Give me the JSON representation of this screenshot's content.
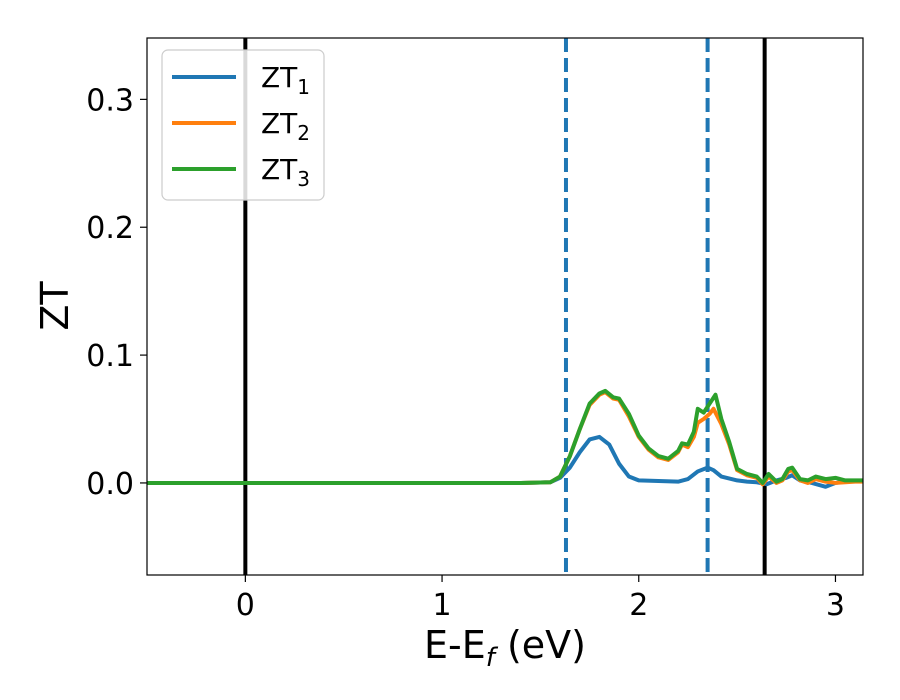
{
  "chart_data": {
    "type": "line",
    "xlabel_main": "E-E",
    "xlabel_sub": "f",
    "xlabel_unit": " (eV)",
    "ylabel": "ZT",
    "xlim": [
      -0.5,
      3.14
    ],
    "ylim": [
      -0.072,
      0.348
    ],
    "x_ticks": [
      0,
      1,
      2,
      3
    ],
    "x_tick_labels": [
      "0",
      "1",
      "2",
      "3"
    ],
    "y_ticks": [
      0.0,
      0.1,
      0.2,
      0.3
    ],
    "y_tick_labels": [
      "0.0",
      "0.1",
      "0.2",
      "0.3"
    ],
    "grid": false,
    "legend_position": "top-left",
    "vertical_lines": [
      {
        "x": 0.0,
        "style": "solid",
        "color": "#000000"
      },
      {
        "x": 2.64,
        "style": "solid",
        "color": "#000000"
      },
      {
        "x": 1.63,
        "style": "dashed",
        "color": "#1f77b4"
      },
      {
        "x": 2.35,
        "style": "dashed",
        "color": "#1f77b4"
      }
    ],
    "series": [
      {
        "name": "ZT",
        "name_sub": "1",
        "color": "#1f77b4",
        "x": [
          -0.5,
          1.4,
          1.55,
          1.6,
          1.65,
          1.7,
          1.75,
          1.8,
          1.85,
          1.9,
          1.95,
          2.0,
          2.1,
          2.2,
          2.25,
          2.3,
          2.35,
          2.38,
          2.42,
          2.5,
          2.55,
          2.6,
          2.65,
          2.7,
          2.75,
          2.78,
          2.82,
          2.88,
          2.95,
          3.0,
          3.05,
          3.1,
          3.14
        ],
        "y": [
          0.0,
          0.0,
          0.0005,
          0.004,
          0.012,
          0.024,
          0.034,
          0.036,
          0.03,
          0.015,
          0.005,
          0.002,
          0.0015,
          0.001,
          0.003,
          0.009,
          0.012,
          0.01,
          0.005,
          0.002,
          0.001,
          0.0005,
          -0.001,
          0.002,
          0.004,
          0.006,
          0.002,
          0.0,
          -0.003,
          0.0,
          0.001,
          0.0015,
          0.0015
        ]
      },
      {
        "name": "ZT",
        "name_sub": "2",
        "color": "#ff7f0e",
        "x": [
          -0.5,
          1.4,
          1.55,
          1.6,
          1.65,
          1.7,
          1.75,
          1.8,
          1.83,
          1.87,
          1.9,
          1.95,
          2.0,
          2.05,
          2.1,
          2.15,
          2.2,
          2.22,
          2.25,
          2.28,
          2.3,
          2.33,
          2.36,
          2.38,
          2.42,
          2.46,
          2.5,
          2.55,
          2.6,
          2.63,
          2.66,
          2.7,
          2.73,
          2.76,
          2.78,
          2.82,
          2.86,
          2.9,
          2.95,
          3.0,
          3.05,
          3.1,
          3.14
        ],
        "y": [
          0.0,
          0.0,
          0.0005,
          0.005,
          0.021,
          0.042,
          0.061,
          0.069,
          0.071,
          0.066,
          0.065,
          0.052,
          0.036,
          0.026,
          0.02,
          0.018,
          0.024,
          0.03,
          0.028,
          0.036,
          0.047,
          0.05,
          0.054,
          0.058,
          0.046,
          0.03,
          0.01,
          0.006,
          0.004,
          -0.001,
          0.005,
          0.0,
          0.002,
          0.009,
          0.01,
          0.002,
          0.0,
          0.003,
          0.001,
          0.0,
          0.0005,
          0.001,
          0.001
        ]
      },
      {
        "name": "ZT",
        "name_sub": "3",
        "color": "#2ca02c",
        "x": [
          -0.5,
          1.4,
          1.55,
          1.6,
          1.65,
          1.7,
          1.75,
          1.8,
          1.83,
          1.87,
          1.9,
          1.95,
          2.0,
          2.05,
          2.1,
          2.15,
          2.2,
          2.22,
          2.25,
          2.28,
          2.3,
          2.33,
          2.36,
          2.39,
          2.42,
          2.46,
          2.5,
          2.55,
          2.6,
          2.63,
          2.66,
          2.7,
          2.73,
          2.76,
          2.78,
          2.82,
          2.86,
          2.9,
          2.95,
          3.0,
          3.05,
          3.1,
          3.14
        ],
        "y": [
          0.0,
          0.0,
          0.0005,
          0.005,
          0.021,
          0.042,
          0.062,
          0.07,
          0.072,
          0.067,
          0.066,
          0.054,
          0.037,
          0.027,
          0.021,
          0.019,
          0.025,
          0.031,
          0.03,
          0.04,
          0.058,
          0.055,
          0.062,
          0.069,
          0.05,
          0.032,
          0.011,
          0.007,
          0.005,
          0.0,
          0.007,
          0.001,
          0.003,
          0.011,
          0.012,
          0.003,
          0.002,
          0.005,
          0.003,
          0.004,
          0.002,
          0.002,
          0.002
        ]
      }
    ]
  }
}
